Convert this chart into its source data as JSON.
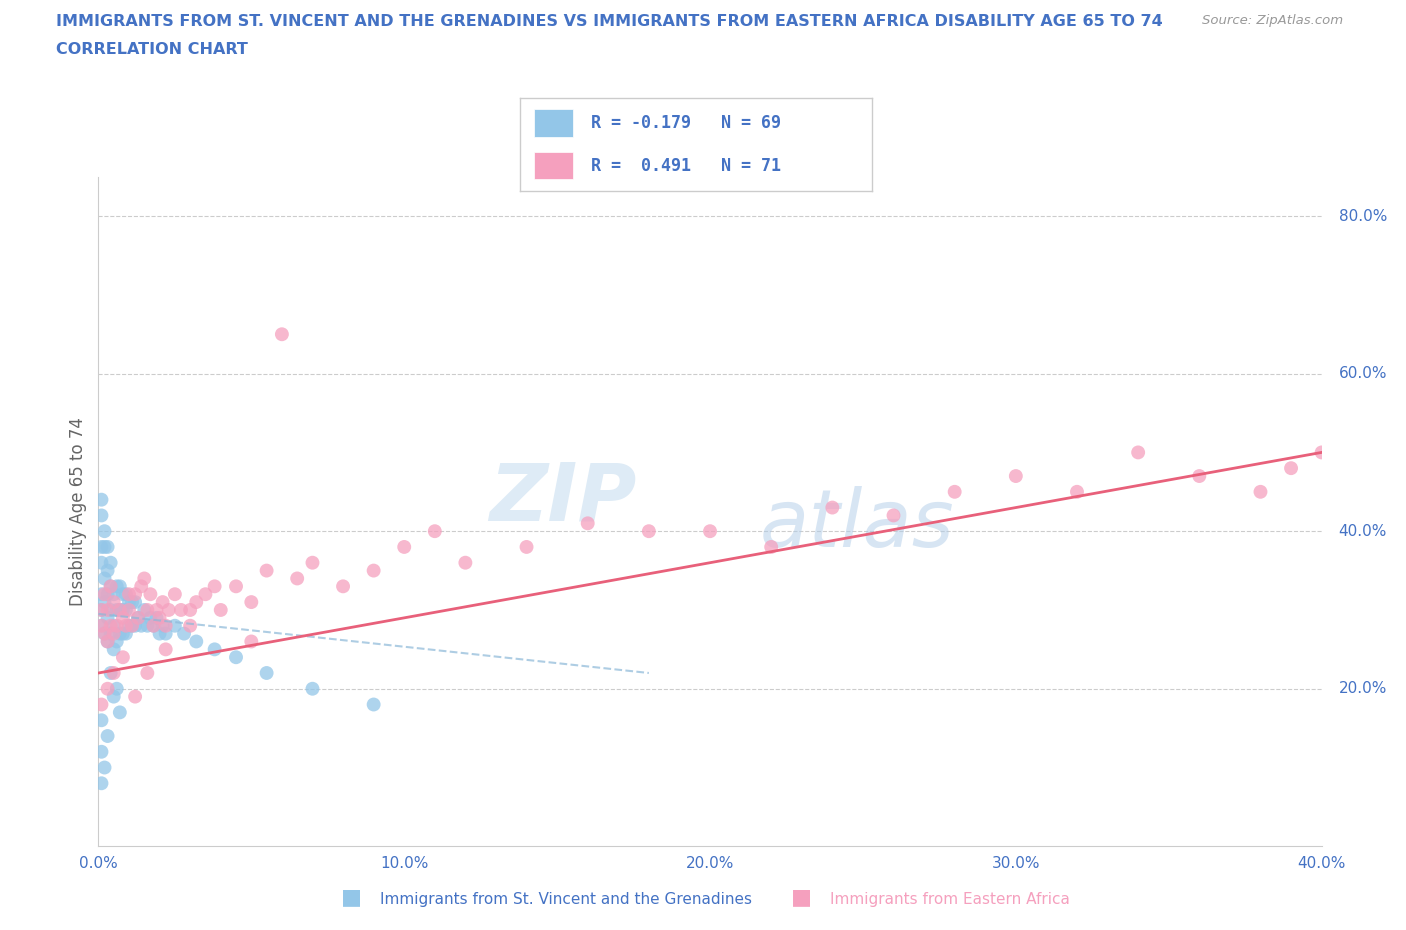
{
  "title_line1": "IMMIGRANTS FROM ST. VINCENT AND THE GRENADINES VS IMMIGRANTS FROM EASTERN AFRICA DISABILITY AGE 65 TO 74",
  "title_line2": "CORRELATION CHART",
  "source_text": "Source: ZipAtlas.com",
  "ylabel": "Disability Age 65 to 74",
  "xlim": [
    0.0,
    0.4
  ],
  "ylim": [
    0.0,
    0.85
  ],
  "xticks": [
    0.0,
    0.1,
    0.2,
    0.3,
    0.4
  ],
  "yticks_right": [
    0.2,
    0.4,
    0.6,
    0.8
  ],
  "watermark_zip": "ZIP",
  "watermark_atlas": "atlas",
  "legend_r1": "R = -0.179",
  "legend_n1": "N = 69",
  "legend_r2": "R =  0.491",
  "legend_n2": "N = 71",
  "color_blue": "#93C6E8",
  "color_pink": "#F5A0BE",
  "color_trendline_blue": "#8CB8D8",
  "color_trendline_pink": "#E8607A",
  "color_title": "#4472C4",
  "color_source": "#999999",
  "background_color": "#FFFFFF",
  "grid_color": "#CCCCCC",
  "label_blue": "Immigrants from St. Vincent and the Grenadines",
  "label_pink": "Immigrants from Eastern Africa",
  "blue_scatter_x": [
    0.001,
    0.001,
    0.001,
    0.001,
    0.001,
    0.001,
    0.001,
    0.002,
    0.002,
    0.002,
    0.002,
    0.002,
    0.003,
    0.003,
    0.003,
    0.003,
    0.003,
    0.004,
    0.004,
    0.004,
    0.004,
    0.005,
    0.005,
    0.005,
    0.006,
    0.006,
    0.006,
    0.007,
    0.007,
    0.007,
    0.008,
    0.008,
    0.008,
    0.009,
    0.009,
    0.009,
    0.01,
    0.01,
    0.011,
    0.011,
    0.012,
    0.012,
    0.013,
    0.014,
    0.015,
    0.016,
    0.017,
    0.018,
    0.019,
    0.02,
    0.021,
    0.022,
    0.025,
    0.028,
    0.032,
    0.038,
    0.045,
    0.055,
    0.07,
    0.09,
    0.001,
    0.001,
    0.001,
    0.002,
    0.003,
    0.004,
    0.005,
    0.006,
    0.007
  ],
  "blue_scatter_y": [
    0.28,
    0.3,
    0.32,
    0.38,
    0.36,
    0.42,
    0.44,
    0.27,
    0.31,
    0.34,
    0.38,
    0.4,
    0.26,
    0.29,
    0.32,
    0.35,
    0.38,
    0.27,
    0.3,
    0.33,
    0.36,
    0.25,
    0.28,
    0.32,
    0.26,
    0.3,
    0.33,
    0.27,
    0.3,
    0.33,
    0.27,
    0.3,
    0.32,
    0.27,
    0.3,
    0.32,
    0.28,
    0.31,
    0.28,
    0.31,
    0.28,
    0.31,
    0.29,
    0.28,
    0.3,
    0.28,
    0.29,
    0.28,
    0.29,
    0.27,
    0.28,
    0.27,
    0.28,
    0.27,
    0.26,
    0.25,
    0.24,
    0.22,
    0.2,
    0.18,
    0.08,
    0.12,
    0.16,
    0.1,
    0.14,
    0.22,
    0.19,
    0.2,
    0.17
  ],
  "pink_scatter_x": [
    0.001,
    0.001,
    0.002,
    0.002,
    0.003,
    0.003,
    0.004,
    0.004,
    0.005,
    0.005,
    0.006,
    0.007,
    0.008,
    0.009,
    0.01,
    0.01,
    0.011,
    0.012,
    0.013,
    0.014,
    0.015,
    0.016,
    0.017,
    0.018,
    0.019,
    0.02,
    0.021,
    0.022,
    0.023,
    0.025,
    0.027,
    0.03,
    0.032,
    0.035,
    0.038,
    0.04,
    0.045,
    0.05,
    0.055,
    0.06,
    0.065,
    0.07,
    0.08,
    0.09,
    0.1,
    0.11,
    0.12,
    0.14,
    0.16,
    0.18,
    0.2,
    0.22,
    0.24,
    0.26,
    0.28,
    0.3,
    0.32,
    0.34,
    0.36,
    0.38,
    0.39,
    0.4,
    0.001,
    0.003,
    0.005,
    0.008,
    0.012,
    0.016,
    0.022,
    0.03,
    0.05
  ],
  "pink_scatter_y": [
    0.28,
    0.3,
    0.27,
    0.32,
    0.26,
    0.3,
    0.28,
    0.33,
    0.27,
    0.31,
    0.28,
    0.3,
    0.29,
    0.28,
    0.3,
    0.32,
    0.28,
    0.32,
    0.29,
    0.33,
    0.34,
    0.3,
    0.32,
    0.28,
    0.3,
    0.29,
    0.31,
    0.28,
    0.3,
    0.32,
    0.3,
    0.3,
    0.31,
    0.32,
    0.33,
    0.3,
    0.33,
    0.31,
    0.35,
    0.65,
    0.34,
    0.36,
    0.33,
    0.35,
    0.38,
    0.4,
    0.36,
    0.38,
    0.41,
    0.4,
    0.4,
    0.38,
    0.43,
    0.42,
    0.45,
    0.47,
    0.45,
    0.5,
    0.47,
    0.45,
    0.48,
    0.5,
    0.18,
    0.2,
    0.22,
    0.24,
    0.19,
    0.22,
    0.25,
    0.28,
    0.26
  ],
  "blue_trend_x0": 0.0,
  "blue_trend_x1": 0.18,
  "blue_trend_y0": 0.295,
  "blue_trend_y1": 0.22,
  "pink_trend_x0": 0.0,
  "pink_trend_x1": 0.4,
  "pink_trend_y0": 0.22,
  "pink_trend_y1": 0.5
}
